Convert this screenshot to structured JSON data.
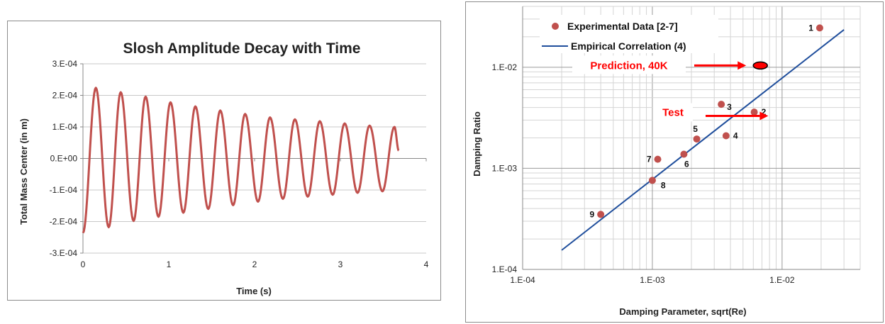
{
  "chart_data": [
    {
      "type": "line",
      "title": "Slosh Amplitude Decay with Time",
      "xlabel": "Time (s)",
      "ylabel": "Total Mass Center (in m)",
      "xlim": [
        0,
        4
      ],
      "ylim": [
        -0.0003,
        0.0003
      ],
      "x_ticks": [
        "0",
        "1",
        "2",
        "3",
        "4"
      ],
      "y_ticks": [
        "3.E-04",
        "2.E-04",
        "1.E-04",
        "0.E+00",
        "-1.E-04",
        "-2.E-04",
        "-3.E-04"
      ],
      "grid": "horizontal",
      "legend": "none",
      "series": [
        {
          "color": "#c0504d",
          "x": [
            0.0,
            0.15,
            0.3,
            0.44,
            0.59,
            0.73,
            0.88,
            1.02,
            1.17,
            1.31,
            1.46,
            1.6,
            1.75,
            1.89,
            2.04,
            2.18,
            2.33,
            2.47,
            2.62,
            2.76,
            2.91,
            3.05,
            3.2,
            3.34,
            3.49,
            3.63,
            3.68
          ],
          "values": [
            -0.000236,
            0.000224,
            -0.000218,
            0.00021,
            -0.000198,
            0.000196,
            -0.000185,
            0.000178,
            -0.000172,
            0.000165,
            -0.00016,
            0.000152,
            -0.000148,
            0.000141,
            -0.000137,
            0.00013,
            -0.000128,
            0.000124,
            -0.000121,
            0.000118,
            -0.000115,
            0.000111,
            -0.000109,
            0.000104,
            -0.000104,
            0.0001,
            2.5e-05
          ]
        }
      ]
    },
    {
      "type": "scatter",
      "xlabel": "Damping Parameter, sqrt(Re)",
      "ylabel": "Damping Ratio",
      "x_scale": "log",
      "y_scale": "log",
      "xlim": [
        0.0001,
        0.04
      ],
      "ylim": [
        0.0001,
        0.04
      ],
      "x_ticks": [
        "1.E-04",
        "1.E-03",
        "1.E-02"
      ],
      "y_ticks": [
        "1.E-02",
        "1.E-03",
        "1.E-04"
      ],
      "grid": "both",
      "legend": "top-left",
      "series": [
        {
          "name": "Experimental Data [2-7]",
          "color": "#c0504d",
          "points": [
            {
              "label": "1",
              "x": 0.0195,
              "y": 0.0245
            },
            {
              "label": "2",
              "x": 0.0061,
              "y": 0.0036
            },
            {
              "label": "3",
              "x": 0.0034,
              "y": 0.0043
            },
            {
              "label": "4",
              "x": 0.0037,
              "y": 0.0021
            },
            {
              "label": "5",
              "x": 0.0022,
              "y": 0.00195
            },
            {
              "label": "6",
              "x": 0.00175,
              "y": 0.00138
            },
            {
              "label": "7",
              "x": 0.0011,
              "y": 0.00123
            },
            {
              "label": "8",
              "x": 0.001,
              "y": 0.00076
            },
            {
              "label": "9",
              "x": 0.0004,
              "y": 0.00035
            }
          ]
        },
        {
          "name": "Empirical Correlation (4)",
          "color": "#1f4e9c",
          "x": [
            0.0002,
            0.03
          ],
          "values": [
            0.000155,
            0.0235
          ]
        }
      ],
      "annotations": [
        {
          "text": "Prediction, 40K",
          "x": 0.0068,
          "y": 0.0104,
          "color": "#ff0000"
        },
        {
          "text": "Test",
          "x": 0.0055,
          "y": 0.0033,
          "color": "#ff0000"
        }
      ]
    }
  ]
}
